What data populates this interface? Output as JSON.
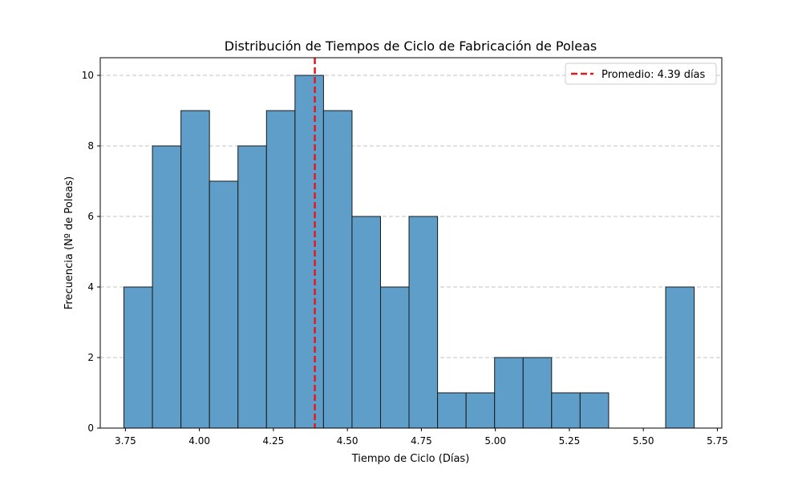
{
  "chart_data": {
    "type": "bar",
    "title": "Distribución de Tiempos de Ciclo de Fabricación de Poleas",
    "xlabel": "Tiempo de Ciclo (Días)",
    "ylabel": "Frecuencia (Nº de Poleas)",
    "xlim": [
      3.665,
      5.765
    ],
    "ylim": [
      0,
      10.5
    ],
    "xticks": [
      "3.75",
      "4.00",
      "4.25",
      "4.50",
      "4.75",
      "5.00",
      "5.25",
      "5.50",
      "5.75"
    ],
    "yticks": [
      "0",
      "2",
      "4",
      "6",
      "8",
      "10"
    ],
    "bin_edges": [
      3.745,
      3.8413,
      3.9377,
      4.034,
      4.1303,
      4.2267,
      4.323,
      4.4193,
      4.5157,
      4.612,
      4.7083,
      4.8047,
      4.901,
      4.9973,
      5.0937,
      5.19,
      5.2863,
      5.3827,
      5.479,
      5.5753,
      5.6717
    ],
    "values": [
      4,
      8,
      9,
      7,
      8,
      9,
      10,
      9,
      6,
      4,
      6,
      1,
      1,
      2,
      2,
      1,
      1,
      0,
      0,
      4
    ],
    "bar_color": "#5f9ec9",
    "edge_color": "#1a1a1a",
    "grid": "y-dashed",
    "mean": {
      "value": 4.39,
      "label": "Promedio: 4.39 días",
      "color": "#e31a1c"
    },
    "legend": {
      "position": "top-right"
    }
  }
}
